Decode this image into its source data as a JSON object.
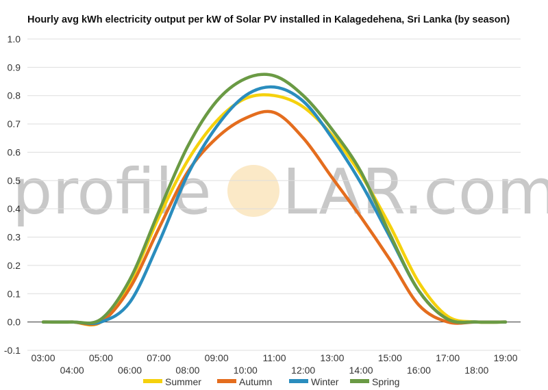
{
  "chart_data": {
    "type": "line",
    "title": "Hourly avg kWh electricity output per kW of Solar PV installed in Kalagedehena, Sri Lanka (by season)",
    "xlabel": "",
    "ylabel": "",
    "ylim": [
      -0.1,
      1.0
    ],
    "y_ticks": [
      "1.0",
      "0.9",
      "0.8",
      "0.7",
      "0.6",
      "0.5",
      "0.4",
      "0.3",
      "0.2",
      "0.1",
      "0.0",
      "-0.1"
    ],
    "y_tick_values": [
      1.0,
      0.9,
      0.8,
      0.7,
      0.6,
      0.5,
      0.4,
      0.3,
      0.2,
      0.1,
      0.0,
      -0.1
    ],
    "x_ticks_upper": [
      "03:00",
      "05:00",
      "07:00",
      "09:00",
      "11:00",
      "13:00",
      "15:00",
      "17:00",
      "19:00"
    ],
    "x_ticks_lower": [
      "04:00",
      "06:00",
      "08:00",
      "10:00",
      "12:00",
      "14:00",
      "16:00",
      "18:00"
    ],
    "x_hours": [
      3,
      4,
      5,
      6,
      7,
      8,
      9,
      10,
      11,
      12,
      13,
      14,
      15,
      16,
      17,
      18,
      19
    ],
    "grid": true,
    "legend_position": "bottom",
    "series": [
      {
        "name": "Summer",
        "color": "#f5d10d",
        "values": [
          0.0,
          0.0,
          0.0,
          0.14,
          0.37,
          0.57,
          0.71,
          0.79,
          0.8,
          0.76,
          0.66,
          0.52,
          0.34,
          0.14,
          0.02,
          0.0,
          0.0
        ]
      },
      {
        "name": "Autumn",
        "color": "#e46d1e",
        "values": [
          0.0,
          0.0,
          0.0,
          0.12,
          0.33,
          0.53,
          0.65,
          0.72,
          0.74,
          0.65,
          0.51,
          0.37,
          0.22,
          0.06,
          0.0,
          0.0,
          0.0
        ]
      },
      {
        "name": "Winter",
        "color": "#2a8dbe",
        "values": [
          0.0,
          0.0,
          0.0,
          0.07,
          0.28,
          0.52,
          0.69,
          0.8,
          0.83,
          0.78,
          0.65,
          0.49,
          0.3,
          0.11,
          0.01,
          0.0,
          0.0
        ]
      },
      {
        "name": "Spring",
        "color": "#6a9a44",
        "values": [
          0.0,
          0.0,
          0.01,
          0.15,
          0.39,
          0.62,
          0.78,
          0.86,
          0.87,
          0.8,
          0.68,
          0.53,
          0.31,
          0.11,
          0.01,
          0.0,
          0.0
        ]
      }
    ]
  },
  "watermark": {
    "left": "profile",
    "right": "LAR.com",
    "sun_color": "#fbe9c7"
  }
}
